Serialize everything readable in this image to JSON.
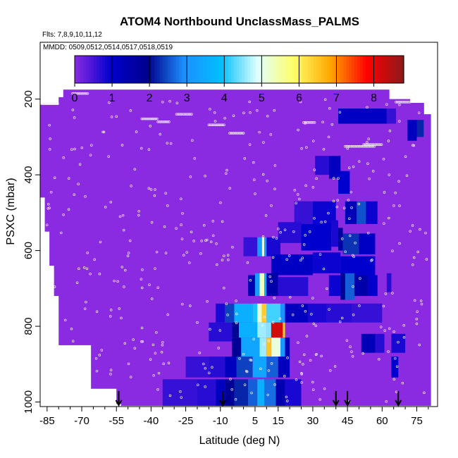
{
  "chart_data": {
    "type": "heatmap",
    "title": "ATOM4 Northbound UnclassMass_PALMS",
    "flights_note": "Flts: 7,8,9,10,11,12",
    "dates_note": "MMDD: 0509,0512,0514,0517,0518,0519",
    "xlabel": "Latitude (deg N)",
    "ylabel": "PSXC (mbar)",
    "xlim": [
      -88,
      84
    ],
    "ylim": [
      1012,
      50
    ],
    "y_reversed": true,
    "xticks": [
      -85,
      -70,
      -55,
      -40,
      -25,
      -10,
      5,
      15,
      30,
      45,
      60,
      75
    ],
    "xtick_labels": [
      "-85",
      "-70",
      "-55",
      "-40",
      "-25",
      "-10",
      "5",
      "15",
      "30",
      "45",
      "60",
      "75"
    ],
    "yticks": [
      200,
      400,
      600,
      800,
      1000
    ],
    "ytick_labels": [
      "200",
      "400",
      "600",
      "800",
      "1000"
    ],
    "colorbar": {
      "min": 0,
      "max": 8.8,
      "ticks": [
        0,
        1,
        2,
        3,
        4,
        5,
        6,
        7,
        8
      ],
      "tick_labels": [
        "0",
        "1",
        "2",
        "3",
        "4",
        "5",
        "6",
        "7",
        "8"
      ],
      "colors": [
        "#8a2be2",
        "#0000cd",
        "#00008b",
        "#1e90ff",
        "#00bfff",
        "#e0ffff",
        "#ffff66",
        "#ffa500",
        "#ff0000",
        "#8b1a1a"
      ]
    },
    "arrows_latitude": [
      -54,
      -9,
      40,
      45,
      67
    ],
    "background_color": "#8a2be2",
    "coverage_columns": [
      {
        "lat0": -88,
        "lat1": -86,
        "ptop": 215,
        "pbot": 460
      },
      {
        "lat0": -86,
        "lat1": -84,
        "ptop": 215,
        "pbot": 550
      },
      {
        "lat0": -84,
        "lat1": -82,
        "ptop": 215,
        "pbot": 640
      },
      {
        "lat0": -82,
        "lat1": -80,
        "ptop": 215,
        "pbot": 720
      },
      {
        "lat0": -80,
        "lat1": -78,
        "ptop": 195,
        "pbot": 850
      },
      {
        "lat0": -78,
        "lat1": -66,
        "ptop": 175,
        "pbot": 850
      },
      {
        "lat0": -66,
        "lat1": -55,
        "ptop": 175,
        "pbot": 965
      },
      {
        "lat0": -55,
        "lat1": -53,
        "ptop": 175,
        "pbot": 1005
      },
      {
        "lat0": -53,
        "lat1": 63,
        "ptop": 175,
        "pbot": 1010
      },
      {
        "lat0": 63,
        "lat1": 72,
        "ptop": 200,
        "pbot": 1010
      },
      {
        "lat0": 72,
        "lat1": 78,
        "ptop": 210,
        "pbot": 1010
      },
      {
        "lat0": 78,
        "lat1": 81,
        "ptop": 240,
        "pbot": 1010
      }
    ],
    "cells": [
      {
        "lat0": 41,
        "lat1": 62,
        "p0": 225,
        "p1": 265,
        "v": 1.1
      },
      {
        "lat0": 62,
        "lat1": 66,
        "p0": 225,
        "p1": 265,
        "v": 0.6
      },
      {
        "lat0": 71,
        "lat1": 75,
        "p0": 255,
        "p1": 310,
        "v": 1.2
      },
      {
        "lat0": 75,
        "lat1": 78,
        "p0": 255,
        "p1": 300,
        "v": 2.2
      },
      {
        "lat0": 31,
        "lat1": 37,
        "p0": 350,
        "p1": 400,
        "v": 0.7
      },
      {
        "lat0": 37,
        "lat1": 42,
        "p0": 350,
        "p1": 410,
        "v": 1.2
      },
      {
        "lat0": 41,
        "lat1": 46,
        "p0": 390,
        "p1": 450,
        "v": 1.0
      },
      {
        "lat0": 22,
        "lat1": 30,
        "p0": 470,
        "p1": 540,
        "v": 0.6
      },
      {
        "lat0": 30,
        "lat1": 40,
        "p0": 470,
        "p1": 540,
        "v": 0.9
      },
      {
        "lat0": 44,
        "lat1": 49,
        "p0": 470,
        "p1": 530,
        "v": 1.3
      },
      {
        "lat0": 49,
        "lat1": 53,
        "p0": 470,
        "p1": 530,
        "v": 2.5
      },
      {
        "lat0": 53,
        "lat1": 58,
        "p0": 470,
        "p1": 530,
        "v": 0.9
      },
      {
        "lat0": 15,
        "lat1": 25,
        "p0": 525,
        "p1": 580,
        "v": 0.7
      },
      {
        "lat0": 25,
        "lat1": 38,
        "p0": 530,
        "p1": 600,
        "v": 1.0
      },
      {
        "lat0": 38,
        "lat1": 41,
        "p0": 520,
        "p1": 590,
        "v": 0.8
      },
      {
        "lat0": 41,
        "lat1": 43,
        "p0": 540,
        "p1": 600,
        "v": 1.6
      },
      {
        "lat0": 43,
        "lat1": 50,
        "p0": 555,
        "p1": 610,
        "v": 2.3
      },
      {
        "lat0": 50,
        "lat1": 57,
        "p0": 555,
        "p1": 610,
        "v": 1.1
      },
      {
        "lat0": 0,
        "lat1": 6,
        "p0": 565,
        "p1": 615,
        "v": 0.6
      },
      {
        "lat0": 6,
        "lat1": 8,
        "p0": 565,
        "p1": 615,
        "v": 3.2
      },
      {
        "lat0": 8,
        "lat1": 9,
        "p0": 565,
        "p1": 615,
        "v": 5.1
      },
      {
        "lat0": 9,
        "lat1": 10,
        "p0": 565,
        "p1": 615,
        "v": 3.0
      },
      {
        "lat0": 10,
        "lat1": 16,
        "p0": 565,
        "p1": 615,
        "v": 0.8
      },
      {
        "lat0": 12,
        "lat1": 30,
        "p0": 610,
        "p1": 665,
        "v": 1.1
      },
      {
        "lat0": 30,
        "lat1": 42,
        "p0": 605,
        "p1": 660,
        "v": 0.9
      },
      {
        "lat0": 42,
        "lat1": 57,
        "p0": 615,
        "p1": 665,
        "v": 1.0
      },
      {
        "lat0": 2,
        "lat1": 5,
        "p0": 665,
        "p1": 720,
        "v": 1.4
      },
      {
        "lat0": 5,
        "lat1": 7,
        "p0": 660,
        "p1": 720,
        "v": 3.2
      },
      {
        "lat0": 7,
        "lat1": 9,
        "p0": 660,
        "p1": 720,
        "v": 5.3
      },
      {
        "lat0": 9,
        "lat1": 10,
        "p0": 660,
        "p1": 720,
        "v": 3.5
      },
      {
        "lat0": 10,
        "lat1": 15,
        "p0": 660,
        "p1": 720,
        "v": 1.5
      },
      {
        "lat0": 15,
        "lat1": 28,
        "p0": 670,
        "p1": 720,
        "v": 0.7
      },
      {
        "lat0": 37,
        "lat1": 42,
        "p0": 665,
        "p1": 720,
        "v": 0.9
      },
      {
        "lat0": 42,
        "lat1": 44,
        "p0": 660,
        "p1": 730,
        "v": 1.8
      },
      {
        "lat0": 44,
        "lat1": 48,
        "p0": 660,
        "p1": 730,
        "v": 2.6
      },
      {
        "lat0": 48,
        "lat1": 54,
        "p0": 665,
        "p1": 720,
        "v": 1.5
      },
      {
        "lat0": 54,
        "lat1": 58,
        "p0": 665,
        "p1": 720,
        "v": 1.0
      },
      {
        "lat0": 62,
        "lat1": 64,
        "p0": 660,
        "p1": 710,
        "v": 0.7
      },
      {
        "lat0": -12,
        "lat1": -8,
        "p0": 740,
        "p1": 790,
        "v": 0.8
      },
      {
        "lat0": -8,
        "lat1": -4,
        "p0": 740,
        "p1": 790,
        "v": 2.4
      },
      {
        "lat0": -4,
        "lat1": 4,
        "p0": 740,
        "p1": 790,
        "v": 3.6
      },
      {
        "lat0": 4,
        "lat1": 6,
        "p0": 740,
        "p1": 790,
        "v": 4.0
      },
      {
        "lat0": 6,
        "lat1": 8,
        "p0": 740,
        "p1": 790,
        "v": 5.2
      },
      {
        "lat0": 8,
        "lat1": 10,
        "p0": 740,
        "p1": 790,
        "v": 6.4
      },
      {
        "lat0": 10,
        "lat1": 16,
        "p0": 740,
        "p1": 790,
        "v": 4.2
      },
      {
        "lat0": 16,
        "lat1": 18,
        "p0": 740,
        "p1": 790,
        "v": 3.0
      },
      {
        "lat0": 18,
        "lat1": 28,
        "p0": 740,
        "p1": 790,
        "v": 1.2
      },
      {
        "lat0": 28,
        "lat1": 36,
        "p0": 740,
        "p1": 790,
        "v": 0.8
      },
      {
        "lat0": 36,
        "lat1": 47,
        "p0": 740,
        "p1": 790,
        "v": 0.7
      },
      {
        "lat0": 47,
        "lat1": 60,
        "p0": 740,
        "p1": 790,
        "v": 0.6
      },
      {
        "lat0": 10,
        "lat1": 12,
        "p0": 790,
        "p1": 830,
        "v": 4.5
      },
      {
        "lat0": 12,
        "lat1": 17,
        "p0": 790,
        "p1": 830,
        "v": 8.2
      },
      {
        "lat0": 17,
        "lat1": 18,
        "p0": 790,
        "p1": 830,
        "v": 6.5
      },
      {
        "lat0": -5,
        "lat1": -2,
        "p0": 790,
        "p1": 830,
        "v": 2.0
      },
      {
        "lat0": -2,
        "lat1": 6,
        "p0": 790,
        "p1": 830,
        "v": 3.6
      },
      {
        "lat0": 6,
        "lat1": 10,
        "p0": 790,
        "p1": 830,
        "v": 4.6
      },
      {
        "lat0": -15,
        "lat1": -5,
        "p0": 790,
        "p1": 840,
        "v": 0.7
      },
      {
        "lat0": -5,
        "lat1": -1,
        "p0": 830,
        "p1": 880,
        "v": 1.8
      },
      {
        "lat0": -1,
        "lat1": 7,
        "p0": 830,
        "p1": 880,
        "v": 3.4
      },
      {
        "lat0": 7,
        "lat1": 10,
        "p0": 830,
        "p1": 880,
        "v": 4.6
      },
      {
        "lat0": 10,
        "lat1": 12,
        "p0": 830,
        "p1": 880,
        "v": 6.5
      },
      {
        "lat0": 12,
        "lat1": 16,
        "p0": 830,
        "p1": 880,
        "v": 5.1
      },
      {
        "lat0": 16,
        "lat1": 18,
        "p0": 830,
        "p1": 880,
        "v": 3.1
      },
      {
        "lat0": 18,
        "lat1": 20,
        "p0": 830,
        "p1": 880,
        "v": 1.3
      },
      {
        "lat0": 51,
        "lat1": 57,
        "p0": 820,
        "p1": 870,
        "v": 1.3
      },
      {
        "lat0": 57,
        "lat1": 61,
        "p0": 820,
        "p1": 870,
        "v": 0.7
      },
      {
        "lat0": 64,
        "lat1": 70,
        "p0": 820,
        "p1": 870,
        "v": 0.8
      },
      {
        "lat0": -25,
        "lat1": -15,
        "p0": 880,
        "p1": 935,
        "v": 0.6
      },
      {
        "lat0": -15,
        "lat1": -8,
        "p0": 880,
        "p1": 935,
        "v": 0.7
      },
      {
        "lat0": -8,
        "lat1": -3,
        "p0": 880,
        "p1": 935,
        "v": 1.2
      },
      {
        "lat0": -3,
        "lat1": 4,
        "p0": 880,
        "p1": 935,
        "v": 2.4
      },
      {
        "lat0": 4,
        "lat1": 10,
        "p0": 880,
        "p1": 935,
        "v": 3.4
      },
      {
        "lat0": 10,
        "lat1": 15,
        "p0": 880,
        "p1": 935,
        "v": 2.6
      },
      {
        "lat0": 15,
        "lat1": 20,
        "p0": 880,
        "p1": 935,
        "v": 1.2
      },
      {
        "lat0": 64,
        "lat1": 67,
        "p0": 880,
        "p1": 935,
        "v": 1.0
      },
      {
        "lat0": -35,
        "lat1": -20,
        "p0": 940,
        "p1": 1010,
        "v": 0.6
      },
      {
        "lat0": -20,
        "lat1": -12,
        "p0": 940,
        "p1": 1010,
        "v": 0.7
      },
      {
        "lat0": -12,
        "lat1": -8,
        "p0": 940,
        "p1": 1010,
        "v": 1.2
      },
      {
        "lat0": -8,
        "lat1": -4,
        "p0": 940,
        "p1": 1010,
        "v": 1.8
      },
      {
        "lat0": -4,
        "lat1": 2,
        "p0": 940,
        "p1": 1010,
        "v": 2.2
      },
      {
        "lat0": 2,
        "lat1": 6,
        "p0": 940,
        "p1": 1010,
        "v": 2.6
      },
      {
        "lat0": 6,
        "lat1": 9,
        "p0": 940,
        "p1": 1010,
        "v": 3.6
      },
      {
        "lat0": 9,
        "lat1": 14,
        "p0": 940,
        "p1": 1010,
        "v": 2.7
      },
      {
        "lat0": 14,
        "lat1": 18,
        "p0": 940,
        "p1": 1010,
        "v": 1.4
      },
      {
        "lat0": 18,
        "lat1": 25,
        "p0": 940,
        "p1": 1010,
        "v": 0.8
      }
    ]
  }
}
